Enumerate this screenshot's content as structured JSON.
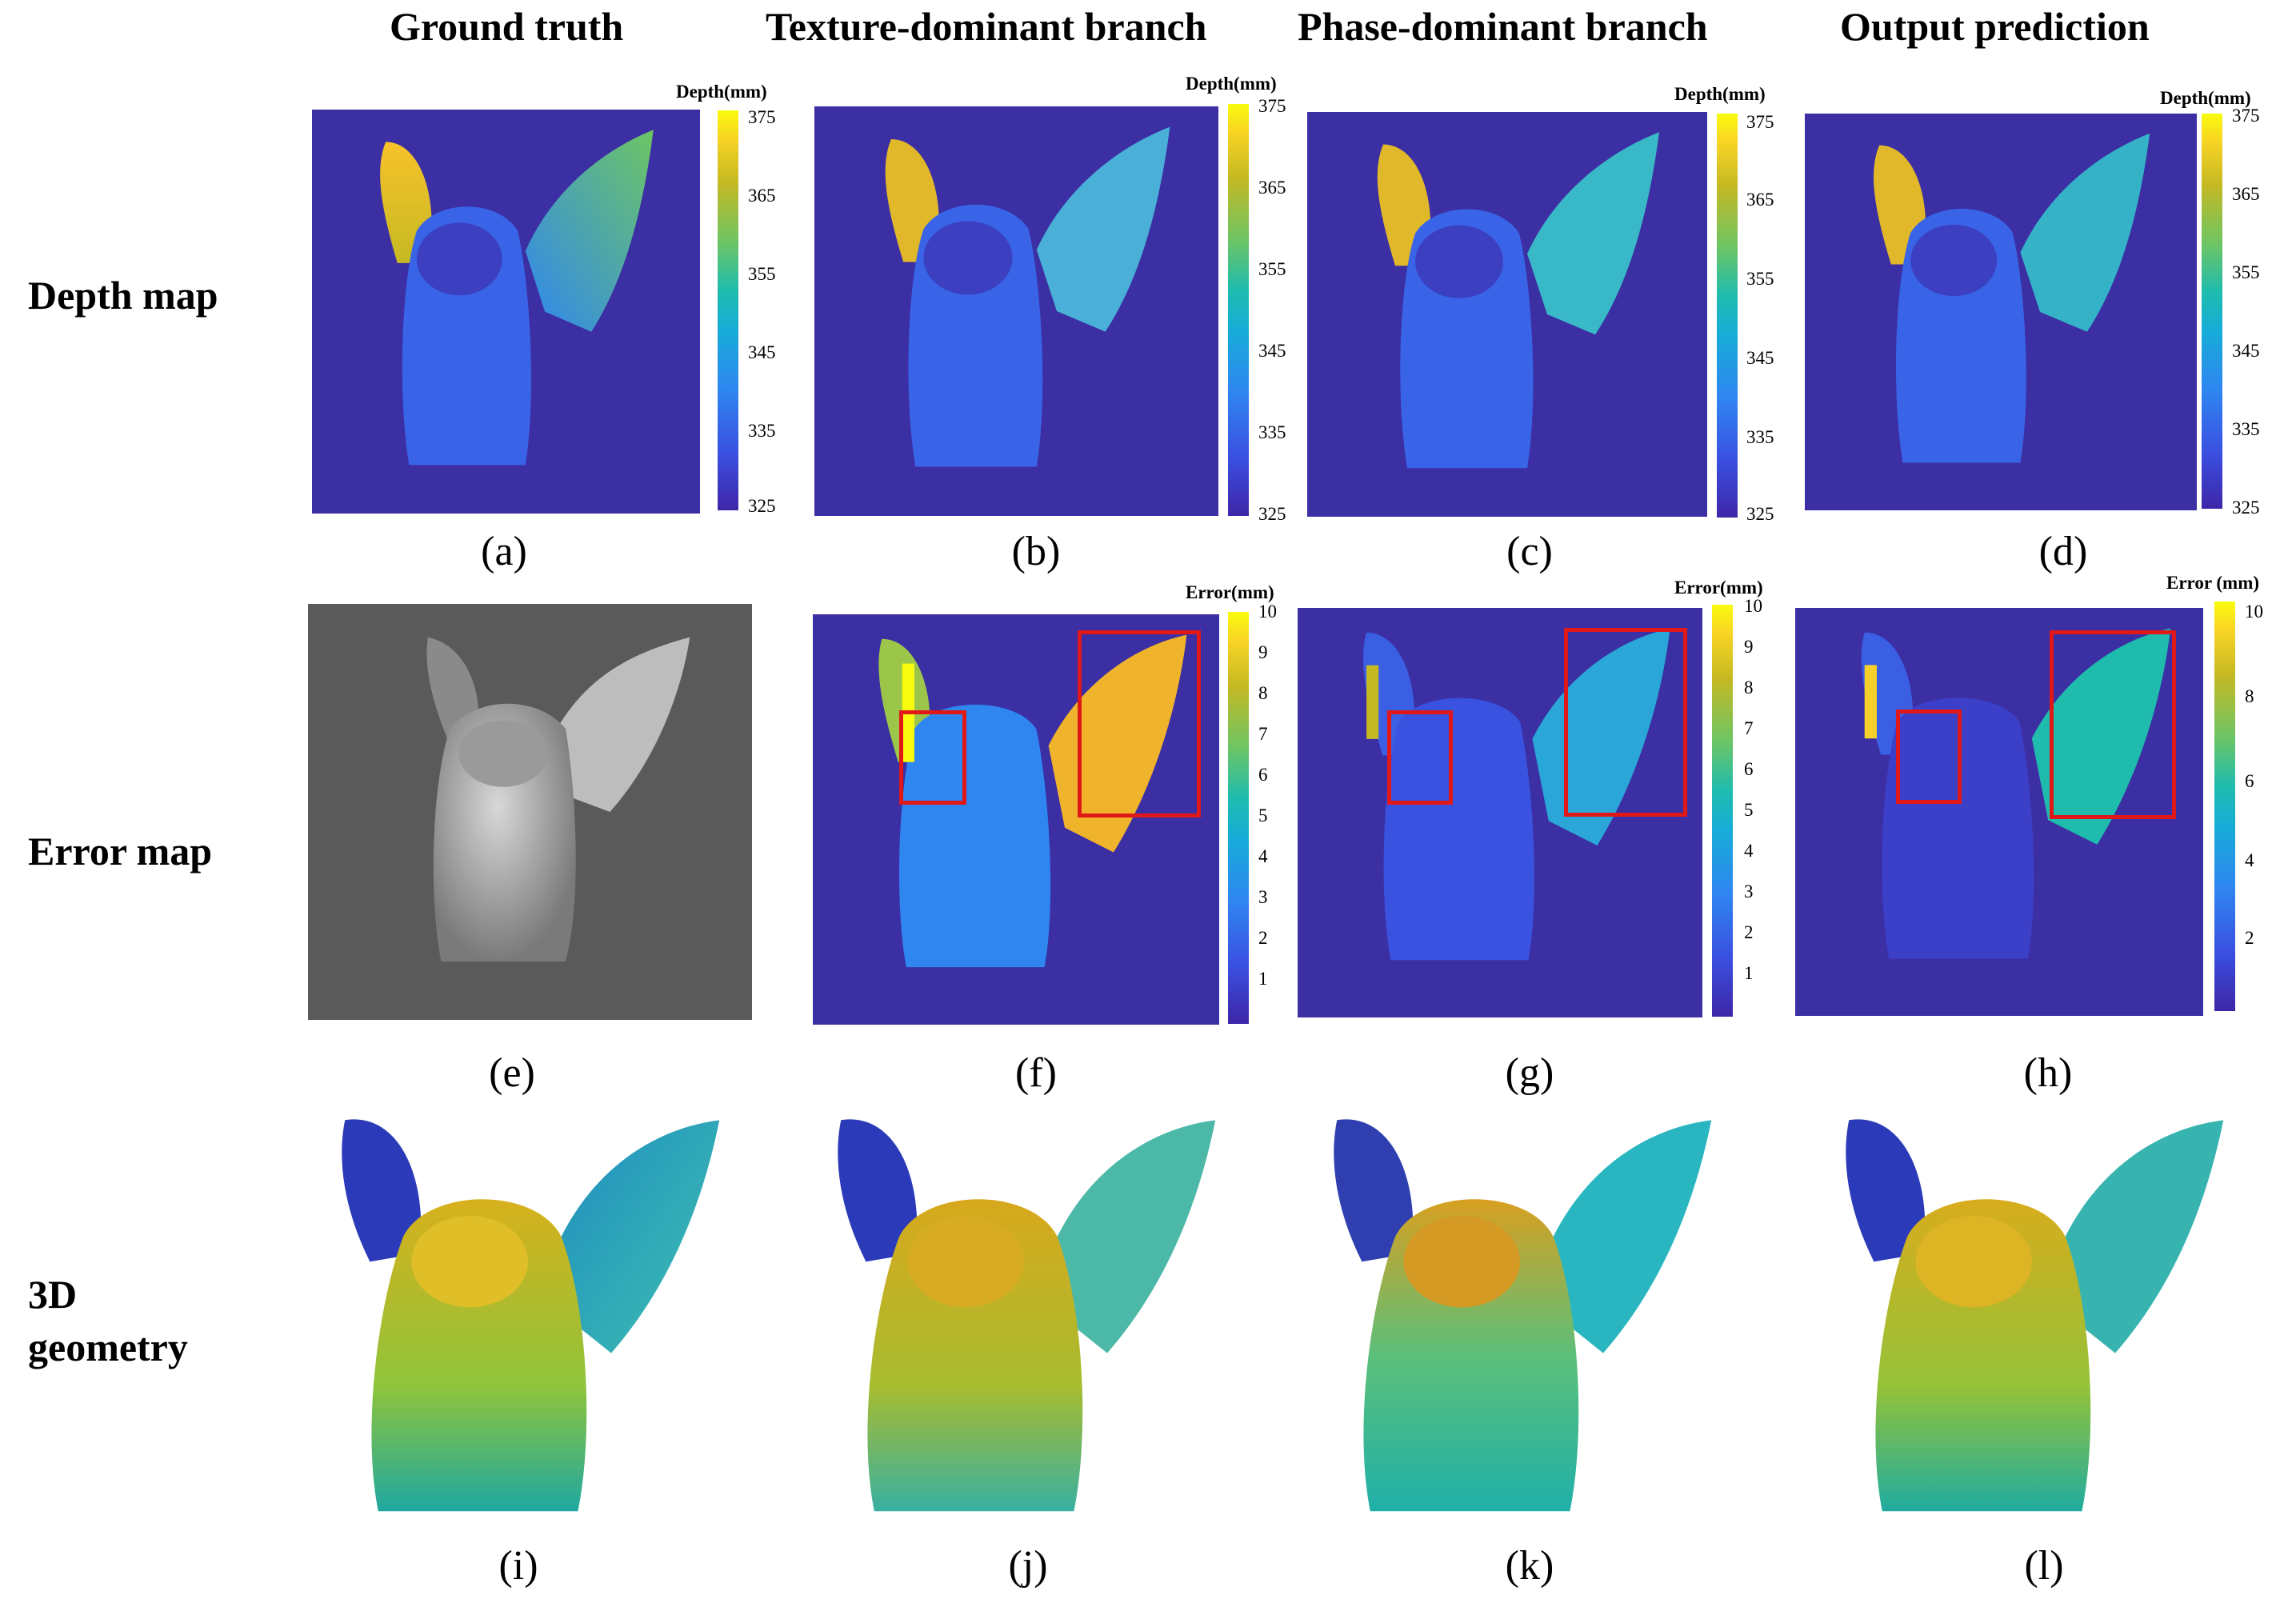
{
  "columns": [
    "Ground truth",
    "Texture-dominant branch",
    "Phase-dominant branch",
    "Output prediction"
  ],
  "rows": {
    "depth": "Depth map",
    "error": "Error map",
    "geometry": "3D\ngeometry"
  },
  "depth_colorbar": {
    "title": "Depth(mm)",
    "ticks": [
      "375",
      "365",
      "355",
      "345",
      "335",
      "325"
    ]
  },
  "error_colorbars": [
    {
      "title": "Error(mm)",
      "ticks": [
        "10",
        "9",
        "8",
        "7",
        "6",
        "5",
        "4",
        "3",
        "2",
        "1"
      ]
    },
    {
      "title": "Error(mm)",
      "ticks": [
        "10",
        "9",
        "8",
        "7",
        "6",
        "5",
        "4",
        "3",
        "2",
        "1"
      ]
    },
    {
      "title": "Error (mm)",
      "ticks": [
        "10",
        "8",
        "6",
        "4",
        "2"
      ]
    }
  ],
  "captions": [
    "(a)",
    "(b)",
    "(c)",
    "(d)",
    "(e)",
    "(f)",
    "(g)",
    "(h)",
    "(i)",
    "(j)",
    "(k)",
    "(l)"
  ],
  "colors": {
    "background_blue": "#3b2fa3",
    "highlight_box": "#e01818",
    "shaded_bg": "#5a5a5a"
  }
}
